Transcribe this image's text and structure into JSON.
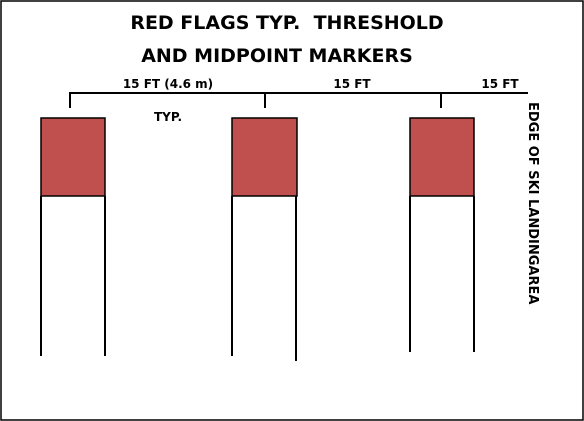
{
  "title": {
    "line1": "RED FLAGS TYP.  THRESHOLD",
    "line2": "AND MIDPOINT MARKERS"
  },
  "dimensions": {
    "first": "15 FT (4.6 m)",
    "second": "15 FT",
    "third": "15 FT",
    "note": "TYP."
  },
  "edge_label": "EDGE OF SKI LANDINGAREA"
}
